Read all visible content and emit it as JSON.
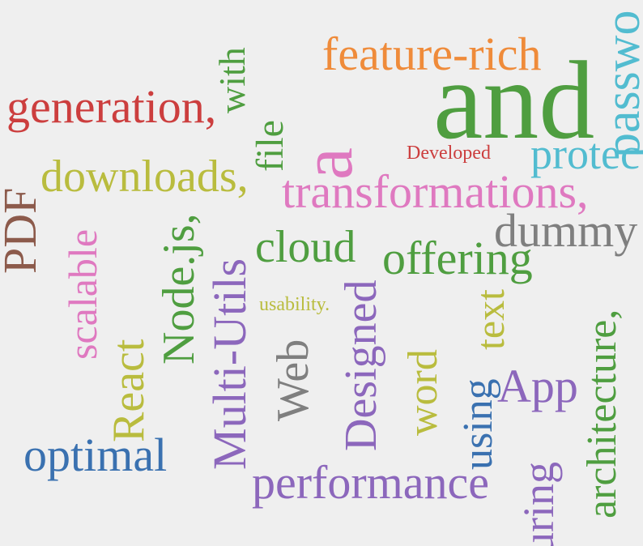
{
  "colors": {
    "background": "#efefef",
    "red": "#cc3e3e",
    "orange": "#ef8b3a",
    "green": "#4f9e40",
    "olive": "#b9bc3e",
    "pink": "#df79c0",
    "cyan": "#52bcd0",
    "brown": "#8c5a4b",
    "gray": "#7f7f7f",
    "purple": "#8c67bc",
    "blue": "#3a71b0"
  },
  "words": {
    "w01": "and",
    "w02": "feature-rich",
    "w03": "generation,",
    "w04": "with",
    "w05": "passwo",
    "w06": "protec",
    "w07": "Developed",
    "w08": "downloads,",
    "w09": "file",
    "w10": "a",
    "w11": "transformations,",
    "w12": "PDF",
    "w13": "dummy",
    "w14": "cloud",
    "w15": "offering",
    "w16": "scalable",
    "w17": "Node.js,",
    "w18": "Multi-Utils",
    "w19": "usability.",
    "w20": "Designed",
    "w21": "text",
    "w22": "architecture,",
    "w23": "React",
    "w24": "Web",
    "w25": "word",
    "w26": "using",
    "w27": "App",
    "w28": "optimal",
    "w29": "performance",
    "w30": "suring"
  }
}
